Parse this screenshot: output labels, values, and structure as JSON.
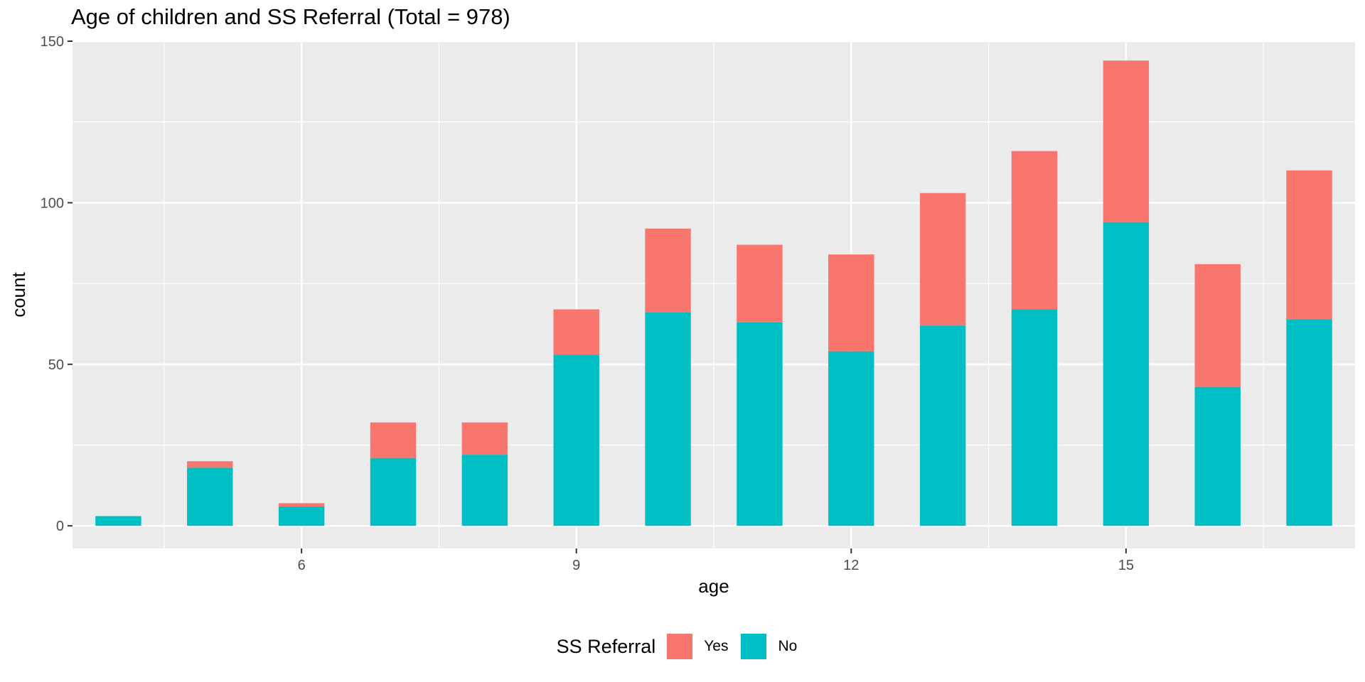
{
  "chart_data": {
    "type": "bar",
    "stacked": true,
    "title": "Age of children and SS Referral (Total = 978)",
    "xlabel": "age",
    "ylabel": "count",
    "x": [
      4,
      5,
      6,
      7,
      8,
      9,
      10,
      11,
      12,
      13,
      14,
      15,
      16,
      17
    ],
    "x_ticks": [
      6,
      9,
      12,
      15
    ],
    "y_ticks": [
      0,
      50,
      100,
      150
    ],
    "ylim": [
      -7,
      150
    ],
    "grid": true,
    "legend_position": "bottom",
    "legend_title": "SS Referral",
    "series": [
      {
        "name": "Yes",
        "color": "#F8766D",
        "values": [
          0,
          2,
          1,
          11,
          10,
          14,
          26,
          24,
          30,
          41,
          49,
          50,
          38,
          46
        ]
      },
      {
        "name": "No",
        "color": "#00BFC4",
        "values": [
          3,
          18,
          6,
          21,
          22,
          53,
          66,
          63,
          54,
          62,
          67,
          94,
          43,
          64
        ]
      }
    ]
  }
}
